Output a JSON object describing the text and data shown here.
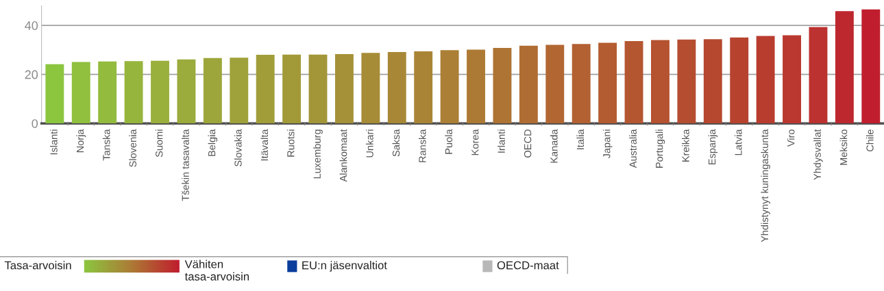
{
  "chart_data": {
    "type": "bar",
    "categories": [
      "Islanti",
      "Norja",
      "Tanska",
      "Slovenia",
      "Suomi",
      "Tšekin tasavalta",
      "Belgia",
      "Slovakia",
      "Itävalta",
      "Ruotsi",
      "Luxemburg",
      "Alankomaat",
      "Unkari",
      "Saksa",
      "Ranska",
      "Puola",
      "Korea",
      "Irlanti",
      "OECD",
      "Kanada",
      "Italia",
      "Japani",
      "Australia",
      "Portugali",
      "Kreikka",
      "Espanja",
      "Latvia",
      "Yhdistynyt kuningaskunta",
      "Viro",
      "Yhdysvallat",
      "Meksiko",
      "Chile"
    ],
    "values": [
      24.2,
      25.1,
      25.3,
      25.4,
      25.6,
      26.1,
      26.7,
      26.8,
      28.0,
      28.1,
      28.1,
      28.3,
      28.8,
      29.1,
      29.4,
      29.9,
      30.1,
      30.8,
      31.7,
      32.1,
      32.4,
      32.9,
      33.6,
      34.0,
      34.2,
      34.4,
      35.1,
      35.7,
      36.0,
      39.3,
      45.8,
      46.5
    ],
    "colors": [
      "#8cc63f",
      "#90c03e",
      "#93bb3e",
      "#96b53d",
      "#99b03c",
      "#9bab3c",
      "#9da63b",
      "#9fa23a",
      "#a19e3a",
      "#a29a39",
      "#a39638",
      "#a59137",
      "#a78c37",
      "#a88836",
      "#aa8436",
      "#ab7f35",
      "#ad7a35",
      "#ae7434",
      "#b06d33",
      "#b26732",
      "#b36132",
      "#b45c31",
      "#b45731",
      "#b55230",
      "#b54d30",
      "#b6482f",
      "#b7432f",
      "#b93d2f",
      "#ba382f",
      "#bb3230",
      "#bd282f",
      "#c01e2e"
    ],
    "ylim": [
      0,
      48
    ],
    "yticks": [
      0,
      20,
      40
    ],
    "grid": "y",
    "annotations": [
      "Tasa-arvoisin",
      "Vähiten\ntasa-arvoisin",
      "EU:n jäsenvaltiot",
      "OECD-maat"
    ]
  }
}
